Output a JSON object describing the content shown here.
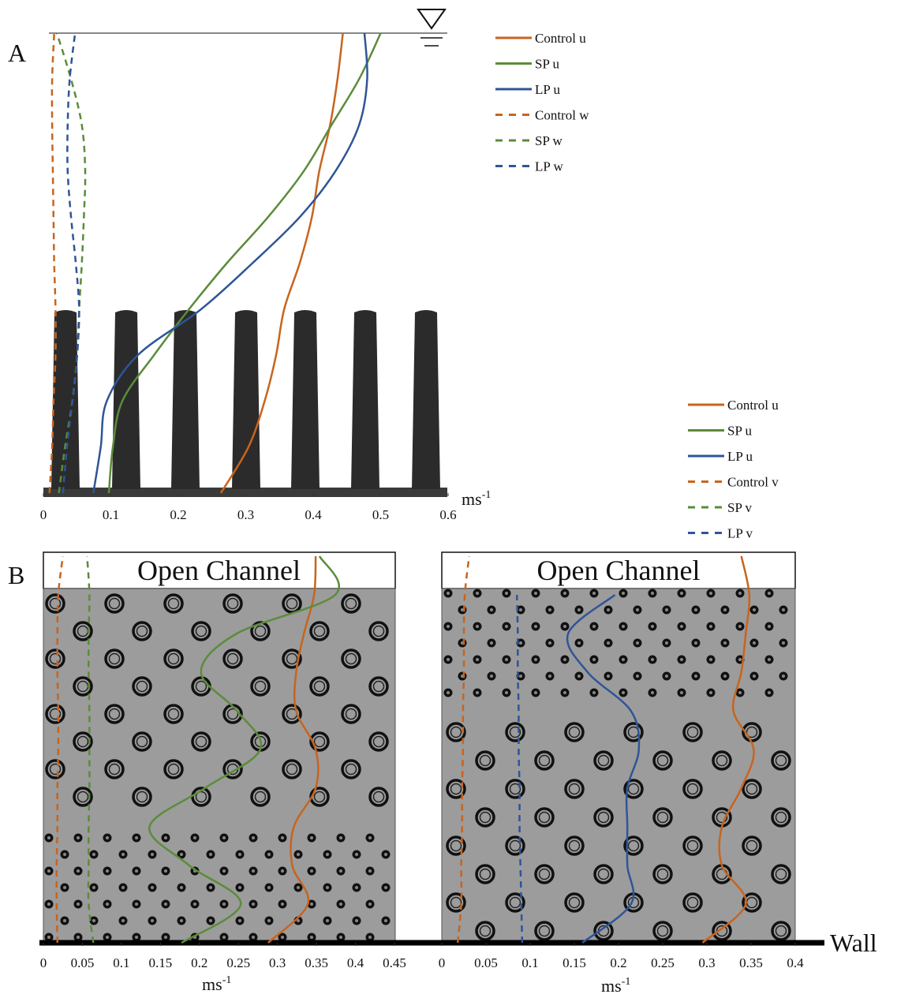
{
  "chart_data": [
    {
      "type": "line",
      "panel_label": "A",
      "x_label": "ms",
      "x_label_sup": "-1",
      "xlim": [
        0,
        0.6
      ],
      "xticks": [
        0,
        0.1,
        0.2,
        0.3,
        0.4,
        0.5,
        0.6
      ],
      "series": [
        {
          "name": "Control u",
          "color": "#c8641e",
          "dashed": false,
          "values": [
            0.263,
            0.304,
            0.328,
            0.345,
            0.357,
            0.38,
            0.398,
            0.409,
            0.425,
            0.436,
            0.444
          ]
        },
        {
          "name": "SP u",
          "color": "#5b8c3a",
          "dashed": false,
          "values": [
            0.097,
            0.103,
            0.117,
            0.164,
            0.216,
            0.272,
            0.333,
            0.386,
            0.427,
            0.468,
            0.5
          ]
        },
        {
          "name": "LP u",
          "color": "#2f5597",
          "dashed": false,
          "values": [
            0.074,
            0.085,
            0.094,
            0.14,
            0.234,
            0.31,
            0.38,
            0.433,
            0.468,
            0.48,
            0.476
          ]
        },
        {
          "name": "Control w",
          "color": "#c8641e",
          "dashed": true,
          "values": [
            0.009,
            0.013,
            0.015,
            0.018,
            0.018,
            0.016,
            0.015,
            0.014,
            0.013,
            0.013,
            0.016
          ]
        },
        {
          "name": "SP w",
          "color": "#5b8c3a",
          "dashed": true,
          "values": [
            0.023,
            0.032,
            0.043,
            0.05,
            0.053,
            0.057,
            0.06,
            0.062,
            0.057,
            0.041,
            0.02
          ]
        },
        {
          "name": "LP w",
          "color": "#2f5597",
          "dashed": true,
          "values": [
            0.029,
            0.035,
            0.043,
            0.05,
            0.053,
            0.048,
            0.041,
            0.036,
            0.036,
            0.039,
            0.047
          ]
        }
      ]
    },
    {
      "type": "line",
      "panel_label": "B",
      "header": "Open Channel",
      "x_label": "ms",
      "x_label_sup": "-1",
      "xlim": [
        0,
        0.45
      ],
      "xticks": [
        0,
        0.05,
        0.1,
        0.15,
        0.2,
        0.25,
        0.3,
        0.35,
        0.4,
        0.45
      ],
      "series": [
        {
          "name": "Control u",
          "color": "#c8641e",
          "dashed": false,
          "values": [
            0.288,
            0.339,
            0.319,
            0.321,
            0.349,
            0.349,
            0.324,
            0.324,
            0.334,
            0.347,
            0.349
          ]
        },
        {
          "name": "SP u",
          "color": "#5b8c3a",
          "dashed": false,
          "values": [
            0.177,
            0.253,
            0.187,
            0.136,
            0.207,
            0.278,
            0.248,
            0.202,
            0.248,
            0.374,
            0.354
          ]
        },
        {
          "name": "Control v",
          "color": "#c8641e",
          "dashed": true,
          "values": [
            0.018,
            0.017,
            0.017,
            0.018,
            0.018,
            0.019,
            0.019,
            0.018,
            0.018,
            0.019,
            0.025
          ]
        },
        {
          "name": "SP v",
          "color": "#5b8c3a",
          "dashed": true,
          "values": [
            0.064,
            0.058,
            0.058,
            0.058,
            0.059,
            0.059,
            0.059,
            0.058,
            0.058,
            0.059,
            0.056
          ]
        }
      ]
    },
    {
      "type": "line",
      "header": "Open Channel",
      "x_label": "ms",
      "x_label_sup": "-1",
      "annotation": "Wall",
      "xlim": [
        0,
        0.4
      ],
      "xticks": [
        0,
        0.05,
        0.1,
        0.15,
        0.2,
        0.25,
        0.3,
        0.35,
        0.4
      ],
      "series": [
        {
          "name": "Control u",
          "color": "#c8641e",
          "dashed": false,
          "values": [
            0.295,
            0.344,
            0.317,
            0.317,
            0.339,
            0.353,
            0.33,
            0.339,
            0.344,
            0.348,
            0.339
          ]
        },
        {
          "name": "LP u",
          "color": "#2f5597",
          "dashed": false,
          "values": [
            0.159,
            0.214,
            0.21,
            0.21,
            0.21,
            0.223,
            0.214,
            0.165,
            0.143,
            0.196,
            null
          ]
        },
        {
          "name": "Control v",
          "color": "#c8641e",
          "dashed": true,
          "values": [
            0.018,
            0.022,
            0.022,
            0.023,
            0.023,
            0.024,
            0.024,
            0.025,
            0.025,
            0.026,
            0.031
          ]
        },
        {
          "name": "LP v",
          "color": "#2f5597",
          "dashed": true,
          "values": [
            0.091,
            0.09,
            0.089,
            0.088,
            0.088,
            0.087,
            0.087,
            0.086,
            0.086,
            0.085,
            null
          ]
        }
      ]
    }
  ]
}
